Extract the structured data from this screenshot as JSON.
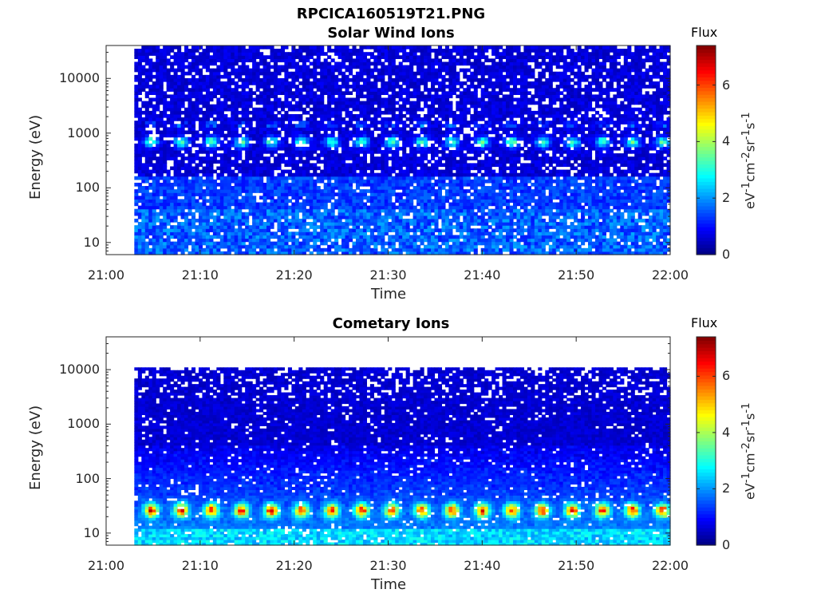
{
  "figure": {
    "filename": "RPCICA160519T21.PNG"
  },
  "chart_data": [
    {
      "type": "heatmap",
      "title": "Solar Wind Ions",
      "xlabel": "Time",
      "ylabel": "Energy (eV)",
      "x_ticks": [
        "21:00",
        "21:10",
        "21:20",
        "21:30",
        "21:40",
        "21:50",
        "22:00"
      ],
      "x_range": [
        "21:00",
        "22:00"
      ],
      "data_start": "21:03",
      "y_scale": "log",
      "y_ticks": [
        10,
        100,
        1000,
        10000
      ],
      "y_range": [
        6,
        40000
      ],
      "colorbar": {
        "title": "Flux",
        "label": "eV-1cm-2sr-1s-1",
        "ticks": [
          0,
          2,
          4,
          6
        ],
        "range": [
          0,
          7.4
        ],
        "colormap": "jet"
      },
      "features": {
        "background_flux_high_energy": 0.4,
        "band_energy_eV": 650,
        "band_peak_flux": 3.2,
        "band_period_min": 3.2,
        "low_energy_flux": 1.8
      }
    },
    {
      "type": "heatmap",
      "title": "Cometary Ions",
      "xlabel": "Time",
      "ylabel": "Energy (eV)",
      "x_ticks": [
        "21:00",
        "21:10",
        "21:20",
        "21:30",
        "21:40",
        "21:50",
        "22:00"
      ],
      "x_range": [
        "21:00",
        "22:00"
      ],
      "data_start": "21:03",
      "y_scale": "log",
      "y_ticks": [
        10,
        100,
        1000,
        10000
      ],
      "y_range": [
        6,
        40000
      ],
      "colorbar": {
        "title": "Flux",
        "label": "eV-1cm-2sr-1s-1",
        "ticks": [
          0,
          2,
          4,
          6
        ],
        "range": [
          0,
          7.4
        ],
        "colormap": "jet"
      },
      "features": {
        "background_flux_high_energy": 0.4,
        "low_energy_band_eV": 25,
        "band_peak_flux": 5.2,
        "band_period_min": 3.2,
        "upper_cutoff_eV": 11000
      }
    }
  ]
}
